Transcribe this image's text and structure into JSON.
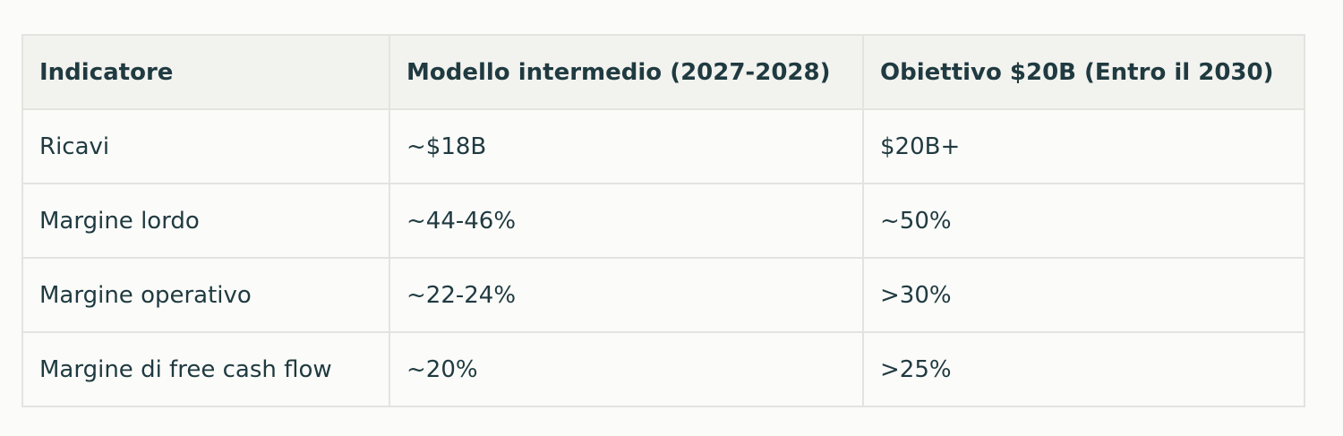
{
  "table": {
    "header": [
      "Indicatore",
      "Modello intermedio (2027-2028)",
      "Obiettivo $20B (Entro il 2030)"
    ],
    "rows": [
      [
        "Ricavi",
        "~$18B",
        "$20B+"
      ],
      [
        "Margine lordo",
        "~44-46%",
        "~50%"
      ],
      [
        "Margine operativo",
        "~22-24%",
        ">30%"
      ],
      [
        "Margine di free cash flow",
        "~20%",
        ">25%"
      ]
    ]
  }
}
